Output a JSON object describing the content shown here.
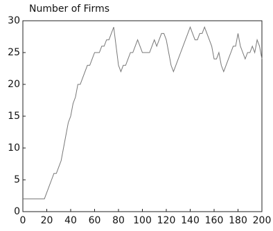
{
  "chart_data": {
    "type": "line",
    "title": "Number of Firms",
    "x": [
      0,
      2,
      4,
      6,
      8,
      10,
      12,
      14,
      16,
      18,
      20,
      22,
      24,
      26,
      28,
      30,
      32,
      34,
      36,
      38,
      40,
      42,
      44,
      46,
      48,
      50,
      52,
      54,
      56,
      58,
      60,
      62,
      64,
      66,
      68,
      70,
      72,
      74,
      76,
      78,
      80,
      82,
      84,
      86,
      88,
      90,
      92,
      94,
      96,
      98,
      100,
      102,
      104,
      106,
      108,
      110,
      112,
      114,
      116,
      118,
      120,
      122,
      124,
      126,
      128,
      130,
      132,
      134,
      136,
      138,
      140,
      142,
      144,
      146,
      148,
      150,
      152,
      154,
      156,
      158,
      160,
      162,
      164,
      166,
      168,
      170,
      172,
      174,
      176,
      178,
      180,
      182,
      184,
      186,
      188,
      190,
      192,
      194,
      196,
      198,
      200
    ],
    "series": [
      {
        "color": "#777777",
        "values": [
          2,
          2,
          2,
          2,
          2,
          2,
          2,
          2,
          2,
          2,
          3,
          4,
          5,
          6,
          6,
          7,
          8,
          10,
          12,
          14,
          15,
          17,
          18,
          20,
          20,
          21,
          22,
          23,
          23,
          24,
          25,
          25,
          25,
          26,
          26,
          27,
          27,
          28,
          29,
          26,
          23,
          22,
          23,
          23,
          24,
          25,
          25,
          26,
          27,
          26,
          25,
          25,
          25,
          25,
          26,
          27,
          26,
          27,
          28,
          28,
          27,
          25,
          23,
          22,
          23,
          24,
          25,
          26,
          27,
          28,
          29,
          28,
          27,
          27,
          28,
          28,
          29,
          28,
          27,
          26,
          24,
          24,
          25,
          23,
          22,
          23,
          24,
          25,
          26,
          26,
          28,
          26,
          25,
          24,
          25,
          25,
          26,
          25,
          27,
          26,
          24
        ]
      }
    ],
    "xlim": [
      0,
      200
    ],
    "xticks": [
      0,
      20,
      40,
      60,
      80,
      100,
      120,
      140,
      160,
      180,
      200
    ],
    "ylim": [
      0,
      30
    ],
    "yticks": [
      0,
      5,
      10,
      15,
      20,
      25,
      30
    ]
  }
}
